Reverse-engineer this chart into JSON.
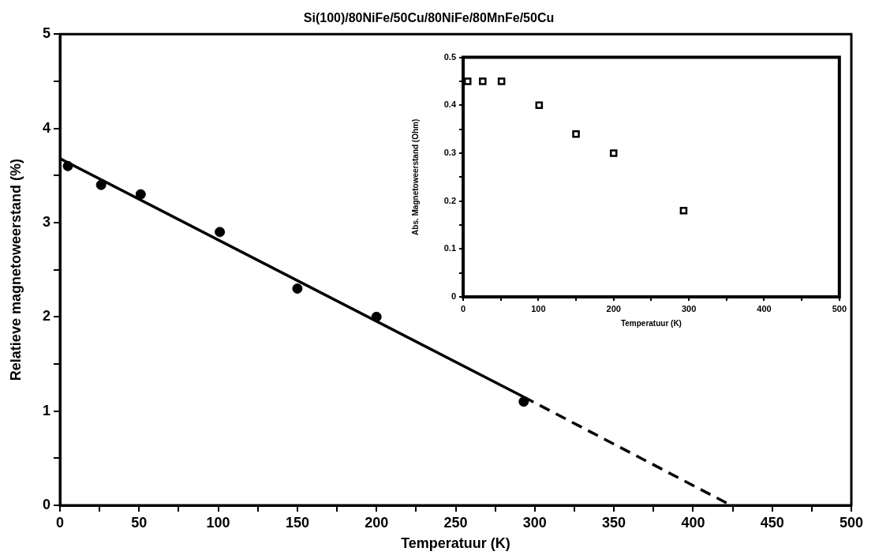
{
  "chart_data": [
    {
      "type": "scatter",
      "title": "Si(100)/80NiFe/50Cu/80NiFe/80MnFe/50Cu",
      "xlabel": "Temperatuur (K)",
      "ylabel": "Relatieve magnetoweerstand (%)",
      "xlim": [
        0,
        500
      ],
      "xticks": [
        0,
        {
          "value": 25,
          "label": null
        },
        50,
        {
          "value": 75,
          "label": null
        },
        100,
        {
          "value": 125,
          "label": null
        },
        150,
        {
          "value": 175,
          "label": null
        },
        200,
        {
          "value": 225,
          "label": null
        },
        250,
        {
          "value": 275,
          "label": null
        },
        300,
        {
          "value": 325,
          "label": null
        },
        350,
        {
          "value": 375,
          "label": null
        },
        400,
        {
          "value": 425,
          "label": null
        },
        450,
        {
          "value": 475,
          "label": null
        },
        500
      ],
      "ylim": [
        0,
        5
      ],
      "yticks": [
        0,
        {
          "value": 0.5,
          "label": null
        },
        1,
        {
          "value": 1.5,
          "label": null
        },
        2,
        {
          "value": 2.5,
          "label": null
        },
        3,
        {
          "value": 3.5,
          "label": null
        },
        4,
        {
          "value": 4.5,
          "label": null
        },
        5
      ],
      "marker": "circle",
      "series": [
        {
          "type": "scatter",
          "color": "#000000",
          "x": [
            5,
            26,
            51,
            101,
            150,
            200,
            293
          ],
          "values": [
            3.6,
            3.4,
            3.3,
            2.9,
            2.3,
            2.0,
            1.1
          ]
        },
        {
          "type": "line",
          "color": "#000000",
          "marker": "none",
          "line_style": "solid",
          "x": [
            0,
            293
          ],
          "values": [
            3.68,
            1.15
          ]
        },
        {
          "type": "line",
          "color": "#000000",
          "marker": "none",
          "line_style": "dashed",
          "x": [
            293,
            424
          ],
          "values": [
            1.15,
            0
          ]
        }
      ]
    },
    {
      "type": "scatter",
      "xlabel": "Temperatuur (K)",
      "ylabel": "Abs. Magnetoweerstand (Ohm)",
      "xlim": [
        0,
        500
      ],
      "xticks": [
        0,
        {
          "value": 50,
          "label": null
        },
        100,
        {
          "value": 150,
          "label": null
        },
        200,
        {
          "value": 250,
          "label": null
        },
        300,
        {
          "value": 350,
          "label": null
        },
        400,
        {
          "value": 450,
          "label": null
        },
        500
      ],
      "ylim": [
        0,
        0.5
      ],
      "yticks": [
        0,
        {
          "value": 0.05,
          "label": null
        },
        0.1,
        {
          "value": 0.15,
          "label": null
        },
        0.2,
        {
          "value": 0.25,
          "label": null
        },
        0.3,
        {
          "value": 0.35,
          "label": null
        },
        0.4,
        {
          "value": 0.45,
          "label": null
        },
        0.5
      ],
      "marker": "square",
      "series": [
        {
          "type": "scatter",
          "color": "#000000",
          "x": [
            6,
            26,
            51,
            101,
            150,
            200,
            293
          ],
          "values": [
            0.45,
            0.45,
            0.45,
            0.4,
            0.34,
            0.3,
            0.18
          ]
        }
      ]
    }
  ]
}
